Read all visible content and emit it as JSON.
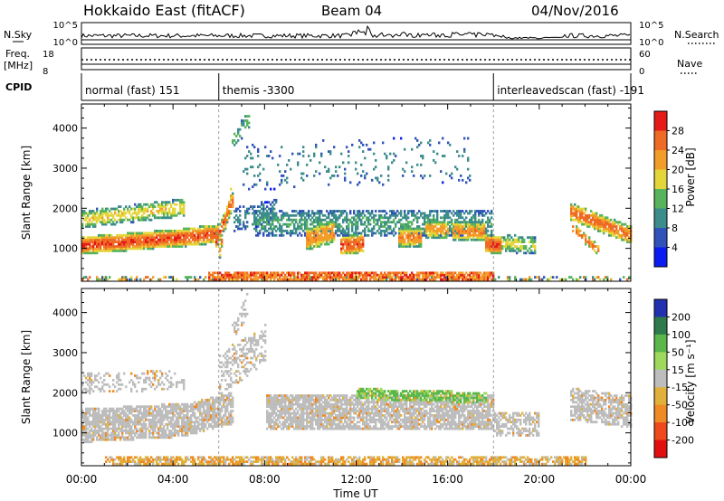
{
  "header": {
    "title": "Hokkaido East (fitACF)",
    "beam": "Beam 04",
    "date": "04/Nov/2016"
  },
  "strip": {
    "nsky_label": "N.Sky",
    "nsky_ticks": [
      "10^5",
      "10^0"
    ],
    "nsearch_ticks": [
      "10^5",
      "10^0"
    ],
    "nsearch_label": "N.Search",
    "freq_label": "Freq.",
    "freq_unit": "[MHz]",
    "freq_ticks": [
      "18",
      "8"
    ],
    "nave_ticks": [
      "60",
      "0"
    ],
    "nave_label": "Nave",
    "cpid_label": "CPID"
  },
  "cpid_segments": [
    {
      "name": "normal (fast) 151",
      "start_hr": 0
    },
    {
      "name": "themis -3300",
      "start_hr": 6
    },
    {
      "name": "interleavedscan (fast) -191",
      "start_hr": 18
    }
  ],
  "xaxis": {
    "label": "Time UT",
    "ticks": [
      "00:00",
      "04:00",
      "08:00",
      "12:00",
      "16:00",
      "20:00",
      "00:00"
    ]
  },
  "chart_data": [
    {
      "type": "heatmap",
      "parameter": "power",
      "ylabel": "Slant Range [km]",
      "y_ticks": [
        1000,
        2000,
        3000,
        4000
      ],
      "ylim": [
        180,
        4600
      ],
      "xlim_hours": [
        0,
        24
      ],
      "colorbar": {
        "label": "Power [dB]",
        "ticks": [
          4,
          8,
          12,
          16,
          20,
          24,
          28
        ],
        "range": [
          0,
          32
        ],
        "colors": [
          "#0a1cf0",
          "#2f53b8",
          "#3d8c8c",
          "#57b45c",
          "#e3d53a",
          "#f29c2a",
          "#ee6a25",
          "#e41b17"
        ]
      }
    },
    {
      "type": "heatmap",
      "parameter": "velocity",
      "ylabel": "Slant Range [km]",
      "y_ticks": [
        1000,
        2000,
        3000,
        4000
      ],
      "ylim": [
        180,
        4600
      ],
      "xlim_hours": [
        0,
        24
      ],
      "colorbar": {
        "label": "Velocity [m s⁻¹]",
        "ticks": [
          200,
          100,
          50,
          15,
          -15,
          -50,
          -100,
          -200
        ],
        "colors": [
          "#2231b0",
          "#2f7a4a",
          "#5ab84a",
          "#9ed85c",
          "#bdbdbd",
          "#e1b03a",
          "#ef8a24",
          "#ee4a1c",
          "#e01010"
        ]
      }
    }
  ]
}
